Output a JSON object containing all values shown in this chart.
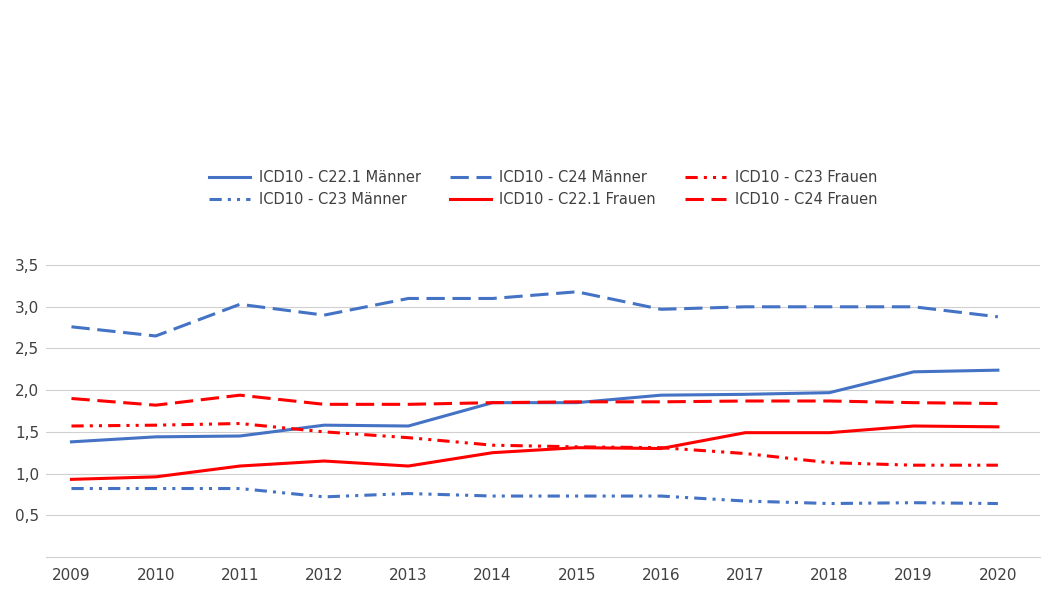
{
  "years": [
    2009,
    2010,
    2011,
    2012,
    2013,
    2014,
    2015,
    2016,
    2017,
    2018,
    2019,
    2020
  ],
  "C22_1_maenner": [
    1.38,
    1.44,
    1.45,
    1.58,
    1.57,
    1.85,
    1.85,
    1.94,
    1.95,
    1.97,
    2.22,
    2.24
  ],
  "C23_maenner": [
    0.82,
    0.82,
    0.82,
    0.72,
    0.76,
    0.73,
    0.73,
    0.73,
    0.67,
    0.64,
    0.65,
    0.64
  ],
  "C24_maenner": [
    2.76,
    2.65,
    3.03,
    2.9,
    3.1,
    3.1,
    3.18,
    2.97,
    3.0,
    3.0,
    3.0,
    2.88
  ],
  "C22_1_frauen": [
    0.93,
    0.96,
    1.09,
    1.15,
    1.09,
    1.25,
    1.31,
    1.3,
    1.49,
    1.49,
    1.57,
    1.56
  ],
  "C23_frauen": [
    1.57,
    1.58,
    1.6,
    1.5,
    1.43,
    1.34,
    1.32,
    1.31,
    1.24,
    1.13,
    1.1,
    1.1
  ],
  "C24_frauen": [
    1.9,
    1.82,
    1.94,
    1.83,
    1.83,
    1.85,
    1.86,
    1.86,
    1.87,
    1.87,
    1.85,
    1.84
  ],
  "color_blue": "#4472C4",
  "color_red": "#FF0000",
  "ylim_min": 0.0,
  "ylim_max": 3.75,
  "yticks": [
    0.5,
    1.0,
    1.5,
    2.0,
    2.5,
    3.0,
    3.5
  ],
  "ytick_labels": [
    "0,5",
    "1,0",
    "1,5",
    "2,0",
    "2,5",
    "3,0",
    "3,5"
  ],
  "legend_labels": [
    "ICD10 - C22.1 Männer",
    "ICD10 - C23 Männer",
    "ICD10 - C24 Männer",
    "ICD10 - C22.1 Frauen",
    "ICD10 - C23 Frauen",
    "ICD10 - C24 Frauen"
  ],
  "lw": 2.2,
  "grid_color": "#d0d0d0",
  "text_color": "#404040",
  "background_color": "#ffffff"
}
